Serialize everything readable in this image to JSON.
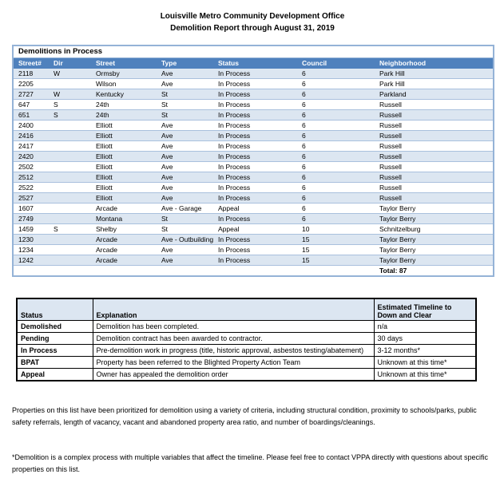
{
  "page": {
    "title_line1": "Louisville Metro Community Development Office",
    "title_line2": "Demolition Report through August 31, 2019"
  },
  "colors": {
    "header_blue": "#4F81BD",
    "alt_row_blue": "#DCE6F1",
    "table_border_blue": "#95B3D7",
    "legend_header_bg": "#DCE6F1"
  },
  "demolitions_table": {
    "title": "Demolitions in Process",
    "columns": [
      "Street#",
      "Dir",
      "Street",
      "Type",
      "Status",
      "Council",
      "Neighborhood"
    ],
    "rows": [
      [
        "2118",
        "W",
        "Ormsby",
        "Ave",
        "In Process",
        "6",
        "Park Hill"
      ],
      [
        "2205",
        "",
        "Wilson",
        "Ave",
        "In Process",
        "6",
        "Park Hill"
      ],
      [
        "2727",
        "W",
        "Kentucky",
        "St",
        "In Process",
        "6",
        "Parkland"
      ],
      [
        "647",
        "S",
        "24th",
        "St",
        "In Process",
        "6",
        "Russell"
      ],
      [
        "651",
        "S",
        "24th",
        "St",
        "In Process",
        "6",
        "Russell"
      ],
      [
        "2400",
        "",
        "Elliott",
        "Ave",
        "In Process",
        "6",
        "Russell"
      ],
      [
        "2416",
        "",
        "Elliott",
        "Ave",
        "In Process",
        "6",
        "Russell"
      ],
      [
        "2417",
        "",
        "Elliott",
        "Ave",
        "In Process",
        "6",
        "Russell"
      ],
      [
        "2420",
        "",
        "Elliott",
        "Ave",
        "In Process",
        "6",
        "Russell"
      ],
      [
        "2502",
        "",
        "Elliott",
        "Ave",
        "In Process",
        "6",
        "Russell"
      ],
      [
        "2512",
        "",
        "Elliott",
        "Ave",
        "In Process",
        "6",
        "Russell"
      ],
      [
        "2522",
        "",
        "Elliott",
        "Ave",
        "In Process",
        "6",
        "Russell"
      ],
      [
        "2527",
        "",
        "Elliott",
        "Ave",
        "In Process",
        "6",
        "Russell"
      ],
      [
        "1607",
        "",
        "Arcade",
        "Ave - Garage",
        "Appeal",
        "6",
        "Taylor Berry"
      ],
      [
        "2749",
        "",
        "Montana",
        "St",
        "In Process",
        "6",
        "Taylor Berry"
      ],
      [
        "1459",
        "S",
        "Shelby",
        "St",
        "Appeal",
        "10",
        "Schnitzelburg"
      ],
      [
        "1230",
        "",
        "Arcade",
        "Ave - Outbuilding",
        "In Process",
        "15",
        "Taylor Berry"
      ],
      [
        "1234",
        "",
        "Arcade",
        "Ave",
        "In Process",
        "15",
        "Taylor Berry"
      ],
      [
        "1242",
        "",
        "Arcade",
        "Ave",
        "In Process",
        "15",
        "Taylor Berry"
      ]
    ],
    "total_label": "Total: 87"
  },
  "status_table": {
    "columns": [
      "Status",
      "Explanation",
      "Estimated Timeline to Down and Clear"
    ],
    "rows": [
      [
        "Demolished",
        "Demolition has been completed.",
        "n/a"
      ],
      [
        "Pending",
        "Demolition contract has been awarded to contractor.",
        "30 days"
      ],
      [
        "In Process",
        "Pre-demolition work in progress (title, historic approval, asbestos testing/abatement)",
        "3-12 months*"
      ],
      [
        "BPAT",
        "Property has been referred to the Blighted Property Action Team",
        "Unknown at this time*"
      ],
      [
        "Appeal",
        "Owner has appealed the demolition order",
        "Unknown at this time*"
      ]
    ]
  },
  "notes": {
    "paragraph1": "Properties on this list have been prioritized for demolition using a variety of criteria, including structural condition, proximity to schools/parks, public safety referrals, length of vacancy, vacant and abandoned property area ratio, and number of boardings/cleanings.",
    "paragraph2": "*Demolition is a complex process with multiple variables that affect the timeline. Please feel free to contact VPPA directly with questions about specific properties on this list."
  }
}
